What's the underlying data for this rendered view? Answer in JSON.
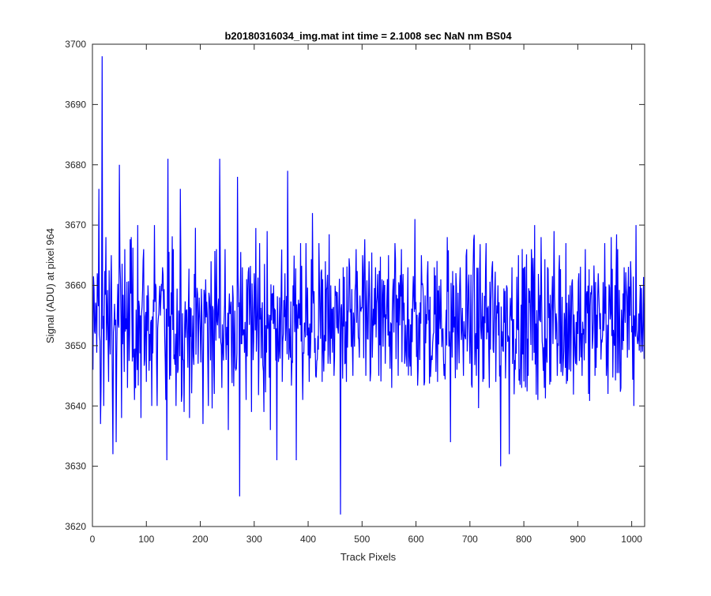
{
  "chart_data": {
    "type": "line",
    "title": "b20180316034_img.mat int time = 2.1008 sec  NaN nm BS04",
    "xlabel": "Track Pixels",
    "ylabel": "Signal (ADU) at pixel 964",
    "xlim": [
      0,
      1024
    ],
    "ylim": [
      3620,
      3700
    ],
    "xticks": [
      0,
      100,
      200,
      300,
      400,
      500,
      600,
      700,
      800,
      900,
      1000
    ],
    "yticks": [
      3620,
      3630,
      3640,
      3650,
      3660,
      3670,
      3680,
      3690,
      3700
    ],
    "grid": false,
    "legend": "none",
    "series": [
      {
        "color": "#0000ff",
        "x_start": 1,
        "x_step": 1,
        "noise_mean": 3654,
        "noise_sd": 7.5,
        "values_note_points": [
          [
            1,
            3646
          ],
          [
            5,
            3652
          ],
          [
            9,
            3662
          ],
          [
            12,
            3676
          ],
          [
            15,
            3637
          ],
          [
            18,
            3698
          ],
          [
            21,
            3640
          ],
          [
            25,
            3668
          ],
          [
            30,
            3644
          ],
          [
            35,
            3665
          ],
          [
            38,
            3632
          ],
          [
            44,
            3634
          ],
          [
            50,
            3680
          ],
          [
            54,
            3638
          ],
          [
            60,
            3666
          ],
          [
            65,
            3643
          ],
          [
            72,
            3668
          ],
          [
            78,
            3641
          ],
          [
            84,
            3670
          ],
          [
            90,
            3638
          ],
          [
            95,
            3666
          ],
          [
            100,
            3644
          ],
          [
            103,
            3660
          ],
          [
            110,
            3640
          ],
          [
            115,
            3670
          ],
          [
            120,
            3640
          ],
          [
            126,
            3655
          ],
          [
            130,
            3663
          ],
          [
            136,
            3641
          ],
          [
            138,
            3631
          ],
          [
            140,
            3681
          ],
          [
            145,
            3645
          ],
          [
            150,
            3666
          ],
          [
            155,
            3640
          ],
          [
            163,
            3676
          ],
          [
            170,
            3639
          ],
          [
            175,
            3656
          ],
          [
            180,
            3638
          ],
          [
            186,
            3655
          ],
          [
            190,
            3658
          ],
          [
            196,
            3647
          ],
          [
            200,
            3652
          ],
          [
            205,
            3637
          ],
          [
            210,
            3661
          ],
          [
            215,
            3640
          ],
          [
            220,
            3664
          ],
          [
            226,
            3642
          ],
          [
            230,
            3666
          ],
          [
            236,
            3681
          ],
          [
            240,
            3643
          ],
          [
            246,
            3666
          ],
          [
            252,
            3636
          ],
          [
            260,
            3660
          ],
          [
            266,
            3646
          ],
          [
            269,
            3678
          ],
          [
            273,
            3625
          ],
          [
            278,
            3663
          ],
          [
            285,
            3641
          ],
          [
            290,
            3663
          ],
          [
            295,
            3639
          ],
          [
            300,
            3662
          ],
          [
            304,
            3649
          ],
          [
            310,
            3667
          ],
          [
            318,
            3639
          ],
          [
            324,
            3669
          ],
          [
            330,
            3636
          ],
          [
            336,
            3660
          ],
          [
            342,
            3631
          ],
          [
            347,
            3658
          ],
          [
            352,
            3644
          ],
          [
            357,
            3662
          ],
          [
            362,
            3679
          ],
          [
            367,
            3648
          ],
          [
            372,
            3660
          ],
          [
            378,
            3631
          ],
          [
            384,
            3657
          ],
          [
            390,
            3641
          ],
          [
            396,
            3667
          ],
          [
            402,
            3644
          ],
          [
            408,
            3672
          ],
          [
            414,
            3645
          ],
          [
            420,
            3667
          ],
          [
            426,
            3644
          ],
          [
            432,
            3664
          ],
          [
            437,
            3647
          ],
          [
            442,
            3660
          ],
          [
            448,
            3645
          ],
          [
            452,
            3659
          ],
          [
            456,
            3652
          ],
          [
            460,
            3622
          ],
          [
            465,
            3663
          ],
          [
            471,
            3644
          ],
          [
            477,
            3663
          ],
          [
            483,
            3645
          ],
          [
            489,
            3666
          ],
          [
            495,
            3648
          ],
          [
            501,
            3665
          ],
          [
            507,
            3645
          ],
          [
            513,
            3664
          ],
          [
            519,
            3648
          ],
          [
            525,
            3663
          ],
          [
            531,
            3645
          ],
          [
            537,
            3661
          ],
          [
            543,
            3647
          ],
          [
            549,
            3665
          ],
          [
            555,
            3643
          ],
          [
            561,
            3667
          ],
          [
            567,
            3645
          ],
          [
            573,
            3666
          ],
          [
            579,
            3647
          ],
          [
            585,
            3663
          ],
          [
            591,
            3645
          ],
          [
            598,
            3671
          ],
          [
            604,
            3646
          ],
          [
            610,
            3665
          ],
          [
            616,
            3644
          ],
          [
            622,
            3664
          ],
          [
            628,
            3647
          ],
          [
            634,
            3663
          ],
          [
            640,
            3644
          ],
          [
            646,
            3661
          ],
          [
            652,
            3645
          ],
          [
            658,
            3668
          ],
          [
            664,
            3634
          ],
          [
            670,
            3660
          ],
          [
            676,
            3646
          ],
          [
            682,
            3663
          ],
          [
            688,
            3645
          ],
          [
            694,
            3666
          ],
          [
            700,
            3647
          ],
          [
            706,
            3663
          ],
          [
            712,
            3645
          ],
          [
            718,
            3662
          ],
          [
            724,
            3644
          ],
          [
            730,
            3667
          ],
          [
            736,
            3643
          ],
          [
            742,
            3664
          ],
          [
            748,
            3644
          ],
          [
            752,
            3660
          ],
          [
            757,
            3630
          ],
          [
            762,
            3649
          ],
          [
            768,
            3660
          ],
          [
            773,
            3632
          ],
          [
            778,
            3663
          ],
          [
            784,
            3646
          ],
          [
            790,
            3665
          ],
          [
            796,
            3643
          ],
          [
            802,
            3663
          ],
          [
            808,
            3645
          ],
          [
            814,
            3666
          ],
          [
            820,
            3670
          ],
          [
            826,
            3641
          ],
          [
            832,
            3668
          ],
          [
            838,
            3643
          ],
          [
            844,
            3663
          ],
          [
            850,
            3644
          ],
          [
            856,
            3669
          ],
          [
            862,
            3645
          ],
          [
            866,
            3665
          ],
          [
            872,
            3645
          ],
          [
            878,
            3667
          ],
          [
            884,
            3646
          ],
          [
            890,
            3661
          ],
          [
            896,
            3647
          ],
          [
            902,
            3662
          ],
          [
            908,
            3645
          ],
          [
            914,
            3666
          ],
          [
            920,
            3642
          ],
          [
            926,
            3660
          ],
          [
            932,
            3645
          ],
          [
            938,
            3662
          ],
          [
            944,
            3651
          ],
          [
            950,
            3667
          ],
          [
            956,
            3642
          ],
          [
            962,
            3668
          ],
          [
            968,
            3650
          ],
          [
            974,
            3666
          ],
          [
            980,
            3643
          ],
          [
            986,
            3663
          ],
          [
            992,
            3648
          ],
          [
            998,
            3664
          ],
          [
            1004,
            3640
          ],
          [
            1008,
            3670
          ],
          [
            1012,
            3651
          ],
          [
            1016,
            3660
          ],
          [
            1020,
            3649
          ],
          [
            1024,
            3657
          ]
        ]
      }
    ]
  }
}
